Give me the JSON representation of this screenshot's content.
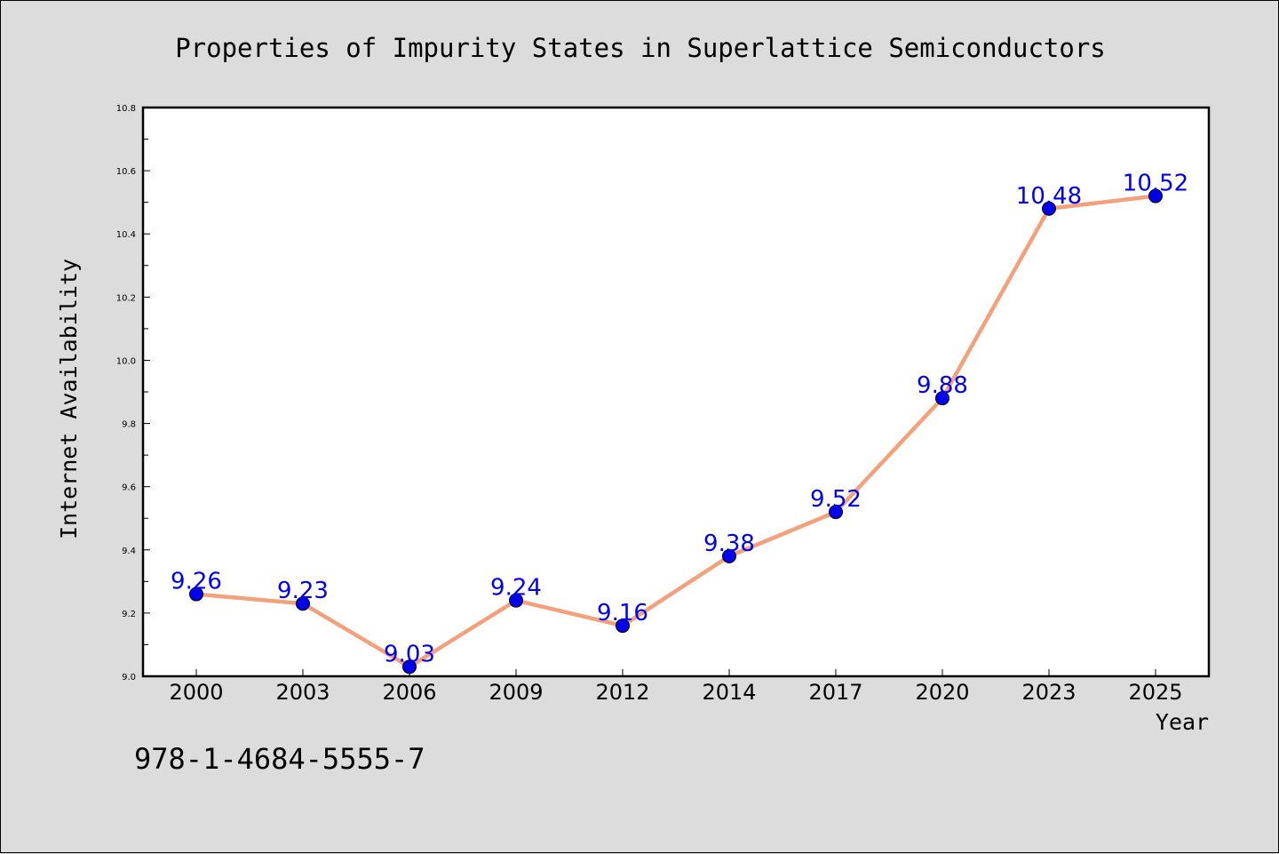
{
  "chart_data": {
    "type": "line",
    "title": "Properties of Impurity States in Superlattice Semiconductors",
    "xlabel": "Year",
    "ylabel": "Internet Availability",
    "categories": [
      "2000",
      "2003",
      "2006",
      "2009",
      "2012",
      "2014",
      "2017",
      "2020",
      "2023",
      "2025"
    ],
    "series": [
      {
        "values": [
          9.26,
          9.23,
          9.03,
          9.24,
          9.16,
          9.38,
          9.52,
          9.88,
          10.48,
          10.52
        ],
        "line_color": "#f4a07a",
        "marker_color": "#0000ee"
      }
    ],
    "data_labels": [
      "9.26",
      "9.23",
      "9.03",
      "9.24",
      "9.16",
      "9.38",
      "9.52",
      "9.88",
      "10.48",
      "10.52"
    ],
    "ylim": [
      9.0,
      10.8
    ],
    "yticks": [
      "9.0",
      "9.2",
      "9.4",
      "9.6",
      "9.8",
      "10.0",
      "10.2",
      "10.4",
      "10.6",
      "10.8"
    ],
    "grid": false,
    "legend": "none"
  },
  "footer": {
    "isbn": "978-1-4684-5555-7"
  },
  "colors": {
    "background": "#dcdcdc",
    "plot_area": "#ffffff",
    "line": "#f4a07a",
    "marker": "#0000ee",
    "data_label": "#0000ee"
  }
}
